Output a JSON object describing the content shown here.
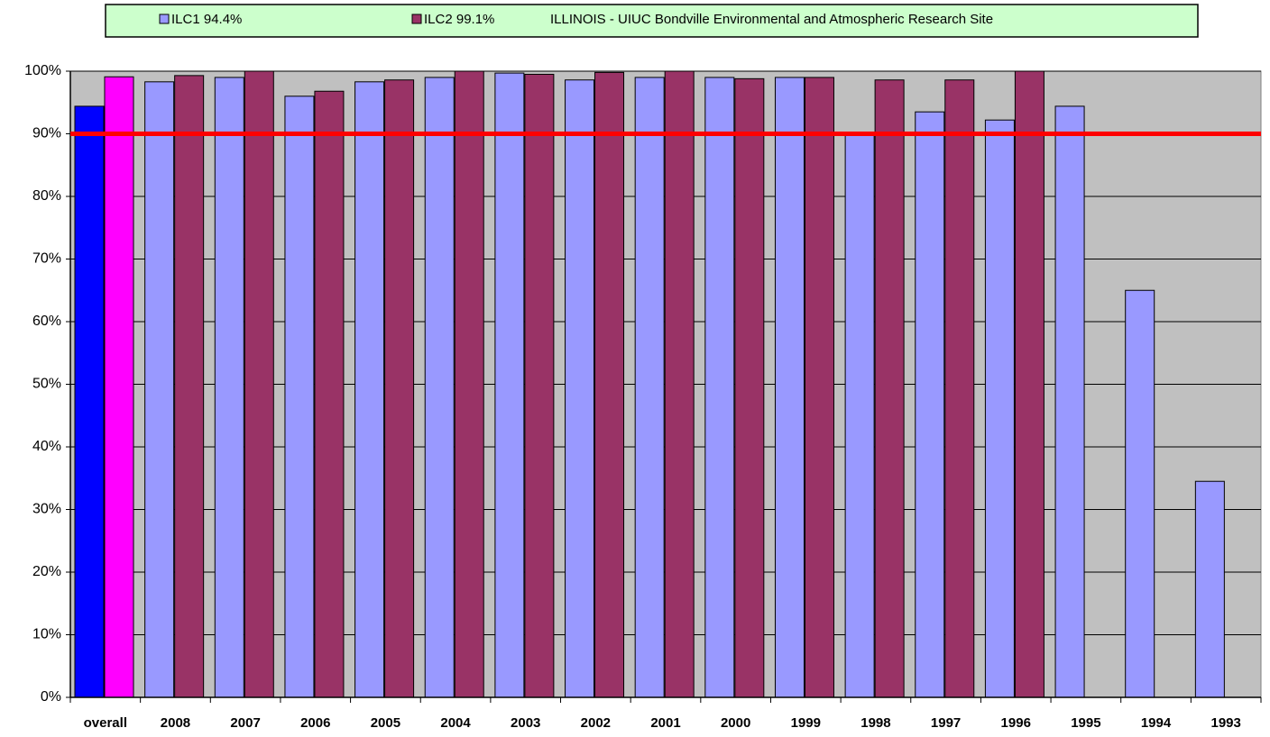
{
  "chart_data": {
    "type": "bar",
    "title": "ILLINOIS - UIUC Bondville Environmental and Atmospheric Research Site",
    "categories": [
      "overall",
      "2008",
      "2007",
      "2006",
      "2005",
      "2004",
      "2003",
      "2002",
      "2001",
      "2000",
      "1999",
      "1998",
      "1997",
      "1996",
      "1995",
      "1994",
      "1993"
    ],
    "series": [
      {
        "name": "ILC1  94.4%",
        "color": "#9999ff",
        "colors": [
          "#0000ff",
          "#9999ff",
          "#9999ff",
          "#9999ff",
          "#9999ff",
          "#9999ff",
          "#9999ff",
          "#9999ff",
          "#9999ff",
          "#9999ff",
          "#9999ff",
          "#9999ff",
          "#9999ff",
          "#9999ff",
          "#9999ff",
          "#9999ff",
          "#9999ff"
        ],
        "values": [
          94.4,
          98.3,
          99.0,
          96.0,
          98.3,
          99.0,
          99.7,
          98.6,
          99.0,
          99.0,
          99.0,
          89.8,
          93.5,
          92.2,
          94.4,
          65.0,
          34.5
        ]
      },
      {
        "name": "ILC2  99.1%",
        "color": "#993366",
        "colors": [
          "#ff00ff",
          "#993366",
          "#993366",
          "#993366",
          "#993366",
          "#993366",
          "#993366",
          "#993366",
          "#993366",
          "#993366",
          "#993366",
          "#993366",
          "#993366",
          "#993366",
          "#993366",
          "#993366",
          "#993366"
        ],
        "values": [
          99.1,
          99.3,
          100,
          96.8,
          98.6,
          100,
          99.5,
          99.8,
          100,
          98.8,
          99.0,
          98.6,
          98.6,
          100,
          null,
          null,
          null
        ]
      }
    ],
    "ylim": [
      0,
      100
    ],
    "yticks": [
      {
        "value": 0,
        "label": "0%"
      },
      {
        "value": 10,
        "label": "10%"
      },
      {
        "value": 20,
        "label": "20%"
      },
      {
        "value": 30,
        "label": "30%"
      },
      {
        "value": 40,
        "label": "40%"
      },
      {
        "value": 50,
        "label": "50%"
      },
      {
        "value": 60,
        "label": "60%"
      },
      {
        "value": 70,
        "label": "70%"
      },
      {
        "value": 80,
        "label": "80%"
      },
      {
        "value": 90,
        "label": "90%"
      },
      {
        "value": 100,
        "label": "100%"
      }
    ],
    "grid": true,
    "reference_line": {
      "value": 90,
      "color": "#ff0000"
    },
    "plot_background": "#c0c0c0",
    "legend_background": "#ccffcc"
  }
}
